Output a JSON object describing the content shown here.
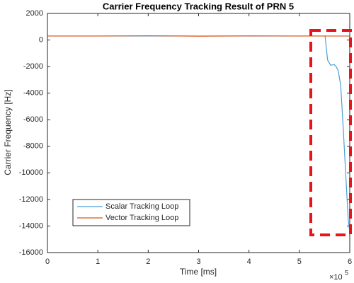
{
  "chart_data": {
    "type": "line",
    "title": "Carrier Frequency Tracking Result of PRN 5",
    "x_label": "Time [ms]",
    "y_label": "Carrier Frequency [Hz]",
    "x_offset_text": {
      "base": "×10",
      "exponent": "5"
    },
    "xlim": [
      0,
      6
    ],
    "xticks": [
      0,
      1,
      2,
      3,
      4,
      5,
      6
    ],
    "ylim": [
      -16000,
      2000
    ],
    "yticks": [
      -16000,
      -14000,
      -12000,
      -10000,
      -8000,
      -6000,
      -4000,
      -2000,
      0,
      2000
    ],
    "legend": "lower left",
    "series": [
      {
        "name": "Scalar Tracking Loop",
        "color": "#4a9fd6",
        "x": [
          0,
          1,
          2,
          3,
          4,
          5,
          5.51,
          5.56,
          5.62,
          5.69,
          5.73,
          5.77,
          5.82,
          5.87,
          5.93,
          5.97,
          6.0
        ],
        "values": [
          300,
          300,
          300,
          300,
          300,
          300,
          300,
          -1500,
          -1900,
          -1850,
          -2000,
          -2300,
          -3400,
          -6600,
          -10800,
          -13500,
          -14500
        ]
      },
      {
        "name": "Vector Tracking Loop",
        "color": "#d95319",
        "x": [
          0,
          1,
          2,
          3,
          4,
          5,
          6
        ],
        "values": [
          300,
          300,
          320,
          290,
          310,
          300,
          300
        ]
      }
    ]
  }
}
